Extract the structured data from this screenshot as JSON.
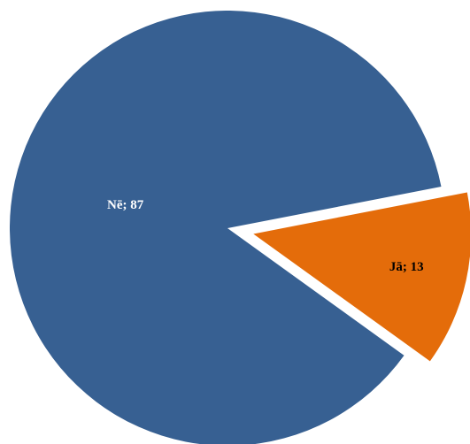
{
  "chart_data": {
    "type": "pie",
    "title": "",
    "slices": [
      {
        "label": "Nē",
        "value": 87,
        "display": "Nē; 87",
        "color": "#376092",
        "label_color": "#ffffff",
        "exploded": false
      },
      {
        "label": "Jā",
        "value": 13,
        "display": "Jā; 13",
        "color": "#e46c0a",
        "label_color": "#000000",
        "exploded": true
      }
    ],
    "legend": "none",
    "start_angle_deg": -11
  }
}
